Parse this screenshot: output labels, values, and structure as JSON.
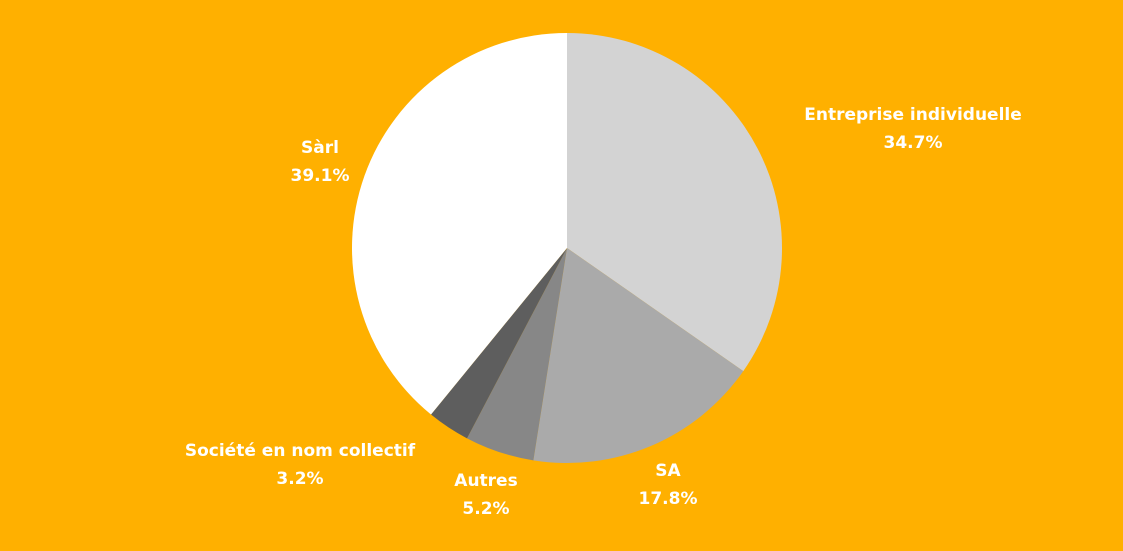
{
  "chart_data": {
    "type": "pie",
    "categories": [
      "Entreprise individuelle",
      "SA",
      "Autres",
      "Société en nom collectif",
      "Sàrl"
    ],
    "values": [
      34.7,
      17.8,
      5.2,
      3.2,
      39.1
    ],
    "value_labels": [
      "34.7%",
      "17.8%",
      "5.2%",
      "3.2%",
      "39.1%"
    ],
    "colors": [
      "#d3d3d3",
      "#aaaaaa",
      "#878787",
      "#5e5e5e",
      "#ffffff"
    ]
  }
}
